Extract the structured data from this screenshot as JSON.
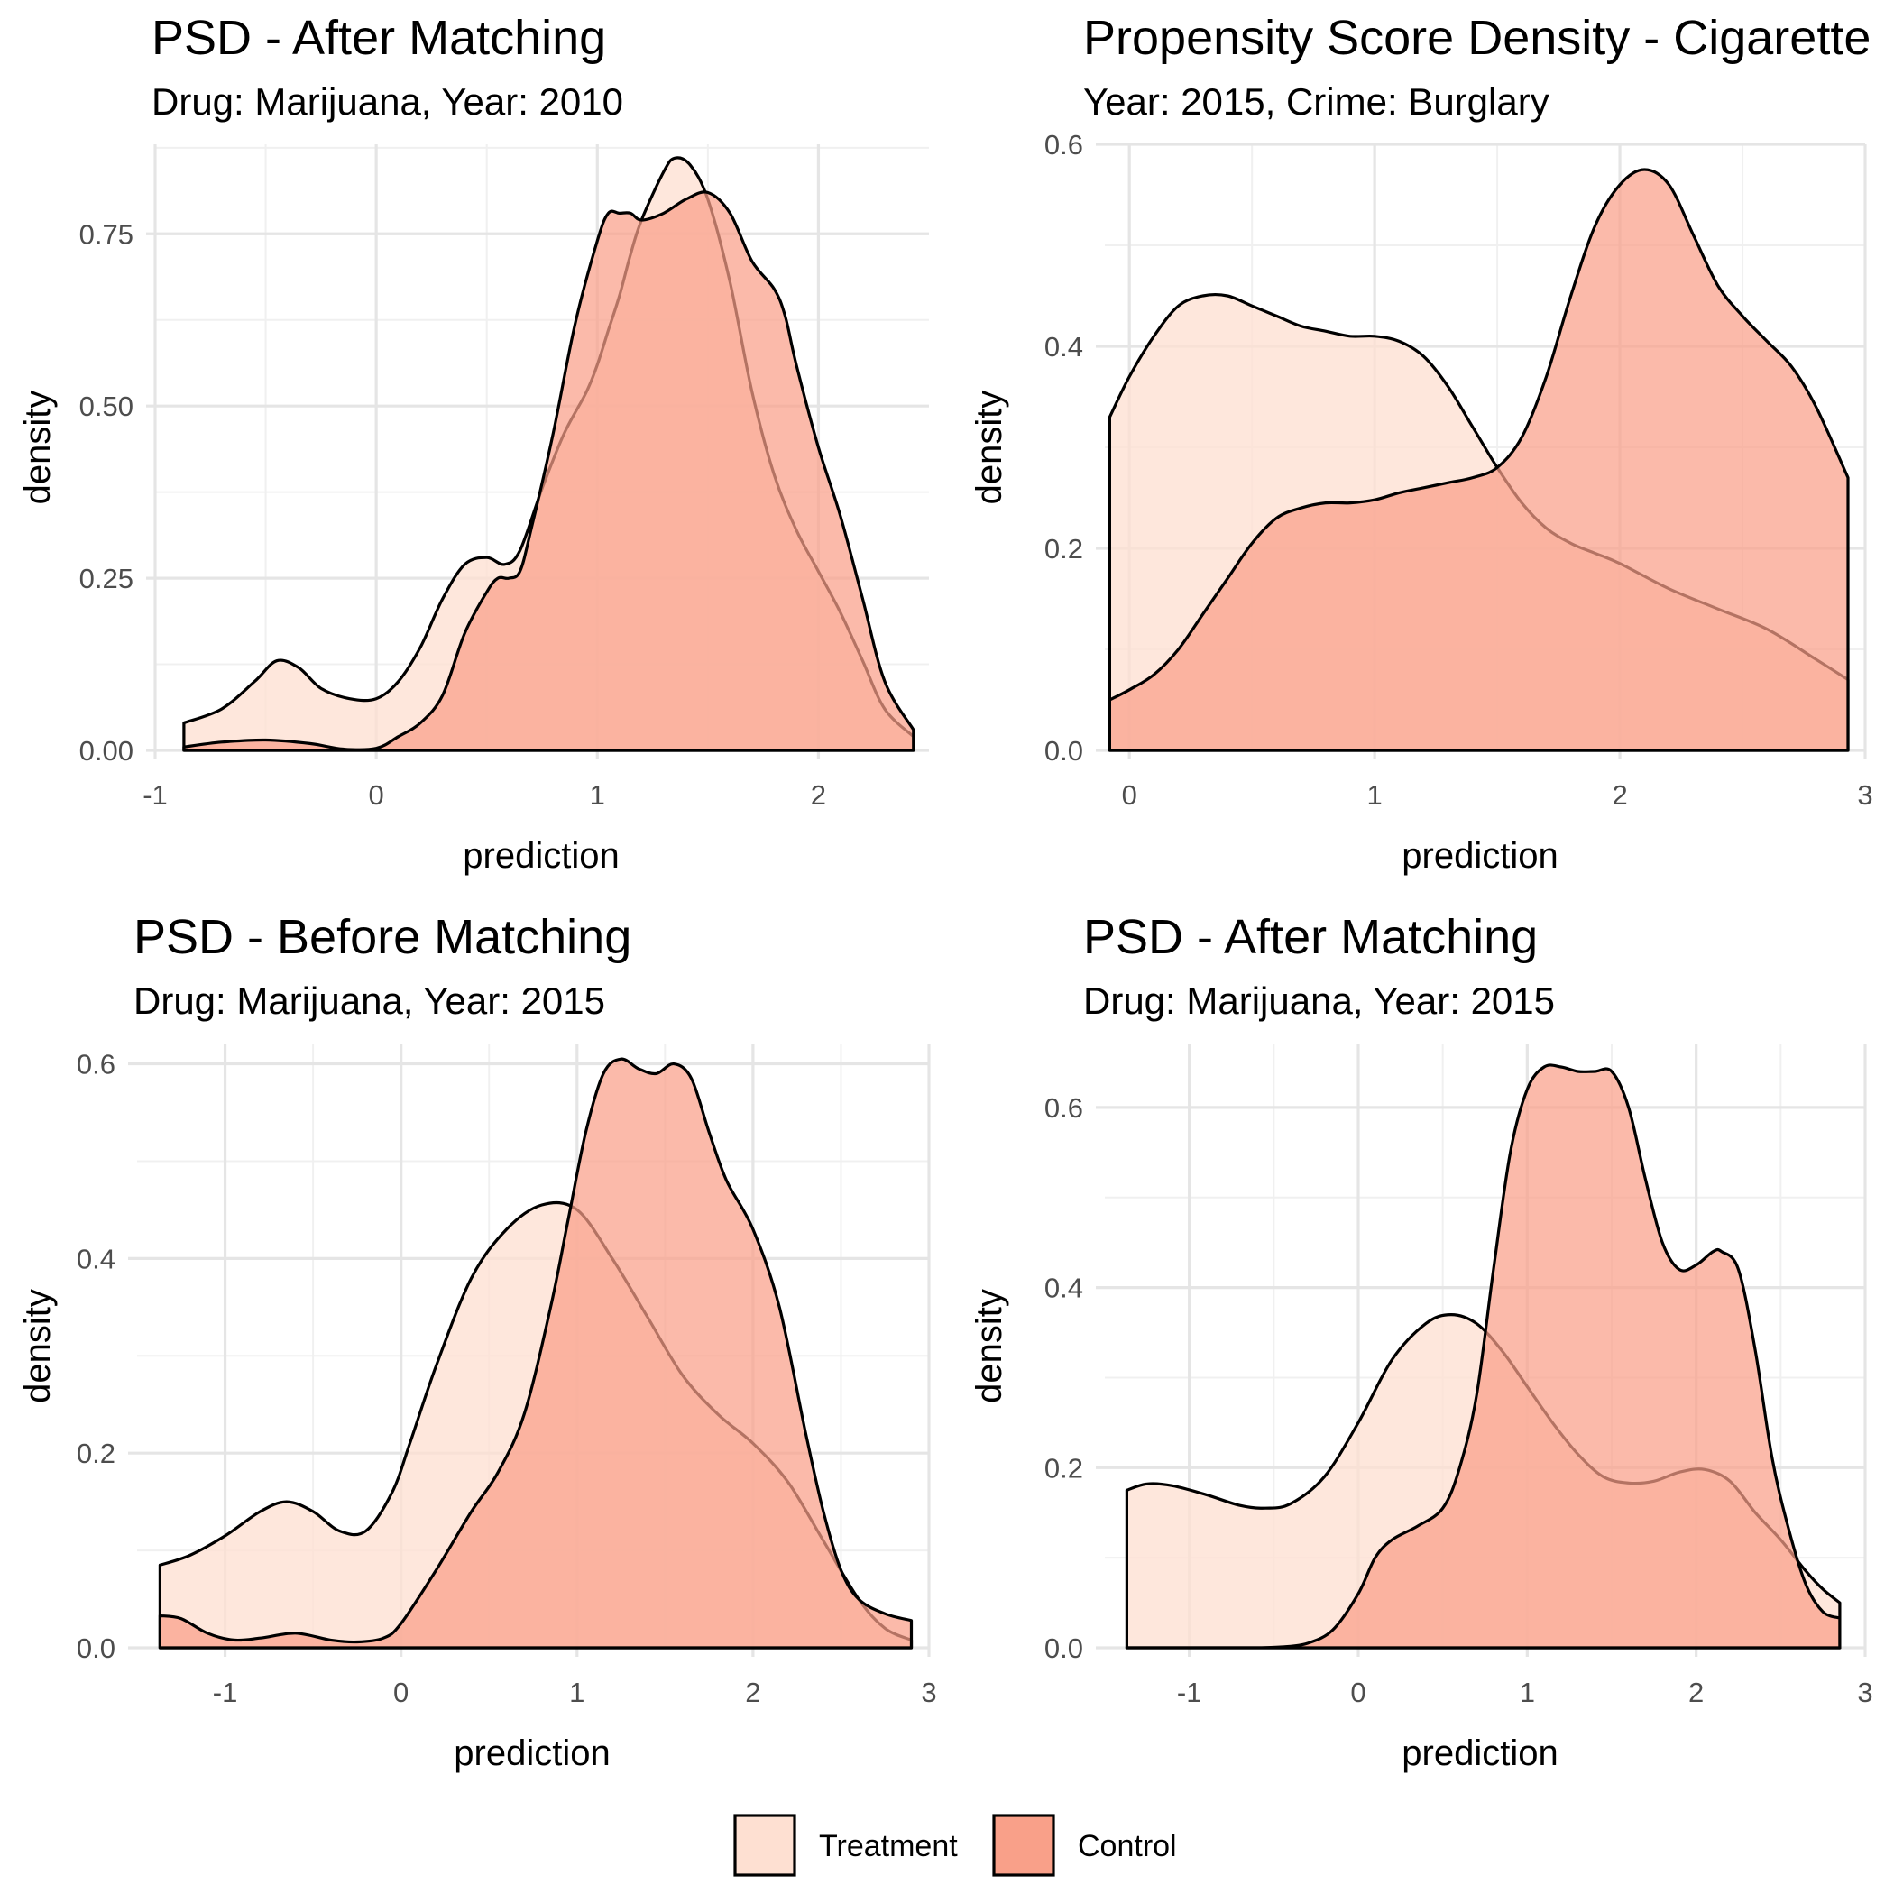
{
  "colors": {
    "treatment_fill": "#fee0d2",
    "control_fill": "#f9a089",
    "grid": "#e5e5e5",
    "outline": "#000000"
  },
  "legend": {
    "items": [
      {
        "label": "Treatment",
        "color": "#fee0d2"
      },
      {
        "label": "Control",
        "color": "#f9a089"
      }
    ],
    "position": "bottom"
  },
  "chart_data": [
    {
      "type": "area",
      "title": "PSD - After Matching",
      "subtitle": "Drug: Marijuana, Year: 2010",
      "xlabel": "prediction",
      "ylabel": "density",
      "xlim": [
        -1,
        2.5
      ],
      "ylim": [
        0,
        0.88
      ],
      "xticks": [
        -1,
        0,
        1,
        2
      ],
      "xtick_labels": [
        "-1",
        "0",
        "1",
        "2"
      ],
      "yticks": [
        0,
        0.25,
        0.5,
        0.75
      ],
      "ytick_labels": [
        "0.00",
        "0.25",
        "0.50",
        "0.75"
      ],
      "grid": true,
      "series": [
        {
          "name": "Treatment",
          "x": [
            -0.87,
            -0.7,
            -0.55,
            -0.45,
            -0.35,
            -0.25,
            -0.12,
            0,
            0.1,
            0.2,
            0.3,
            0.4,
            0.5,
            0.58,
            0.65,
            0.75,
            0.85,
            0.95,
            1.0,
            1.05,
            1.1,
            1.15,
            1.2,
            1.3,
            1.35,
            1.42,
            1.5,
            1.6,
            1.7,
            1.8,
            1.9,
            2.0,
            2.1,
            2.2,
            2.3,
            2.43
          ],
          "y": [
            0.04,
            0.06,
            0.1,
            0.13,
            0.12,
            0.09,
            0.075,
            0.075,
            0.1,
            0.15,
            0.22,
            0.27,
            0.28,
            0.27,
            0.29,
            0.38,
            0.46,
            0.52,
            0.56,
            0.61,
            0.66,
            0.72,
            0.77,
            0.84,
            0.86,
            0.85,
            0.8,
            0.68,
            0.52,
            0.4,
            0.32,
            0.26,
            0.2,
            0.13,
            0.06,
            0.02
          ]
        },
        {
          "name": "Control",
          "x": [
            -0.87,
            -0.7,
            -0.5,
            -0.3,
            -0.15,
            0,
            0.1,
            0.2,
            0.3,
            0.4,
            0.5,
            0.55,
            0.6,
            0.65,
            0.7,
            0.8,
            0.9,
            1.0,
            1.05,
            1.1,
            1.15,
            1.2,
            1.3,
            1.4,
            1.5,
            1.6,
            1.7,
            1.8,
            1.85,
            1.9,
            2.0,
            2.1,
            2.2,
            2.3,
            2.43
          ],
          "y": [
            0.005,
            0.012,
            0.015,
            0.01,
            0.002,
            0.003,
            0.02,
            0.04,
            0.08,
            0.17,
            0.23,
            0.25,
            0.25,
            0.26,
            0.32,
            0.46,
            0.62,
            0.74,
            0.78,
            0.78,
            0.78,
            0.77,
            0.78,
            0.8,
            0.81,
            0.78,
            0.71,
            0.67,
            0.63,
            0.56,
            0.44,
            0.34,
            0.22,
            0.1,
            0.03
          ]
        }
      ]
    },
    {
      "type": "area",
      "title": "Propensity Score Density - Cigarette",
      "subtitle": "Year: 2015, Crime: Burglary",
      "xlabel": "prediction",
      "ylabel": "density",
      "xlim": [
        -0.1,
        3
      ],
      "ylim": [
        0,
        0.6
      ],
      "xticks": [
        0,
        1,
        2,
        3
      ],
      "xtick_labels": [
        "0",
        "1",
        "2",
        "3"
      ],
      "yticks": [
        0,
        0.2,
        0.4,
        0.6
      ],
      "ytick_labels": [
        "0.0",
        "0.2",
        "0.4",
        "0.6"
      ],
      "grid": true,
      "series": [
        {
          "name": "Treatment",
          "x": [
            -0.08,
            0,
            0.1,
            0.2,
            0.3,
            0.4,
            0.5,
            0.6,
            0.7,
            0.8,
            0.9,
            1.0,
            1.1,
            1.2,
            1.3,
            1.4,
            1.5,
            1.6,
            1.7,
            1.8,
            1.9,
            2.0,
            2.2,
            2.4,
            2.6,
            2.8,
            2.93
          ],
          "y": [
            0.33,
            0.37,
            0.41,
            0.44,
            0.45,
            0.45,
            0.44,
            0.43,
            0.42,
            0.415,
            0.41,
            0.41,
            0.405,
            0.39,
            0.36,
            0.32,
            0.28,
            0.245,
            0.22,
            0.205,
            0.195,
            0.185,
            0.16,
            0.14,
            0.12,
            0.09,
            0.07
          ]
        },
        {
          "name": "Control",
          "x": [
            -0.08,
            0,
            0.1,
            0.2,
            0.3,
            0.4,
            0.5,
            0.6,
            0.7,
            0.8,
            0.9,
            1.0,
            1.1,
            1.2,
            1.3,
            1.4,
            1.5,
            1.6,
            1.7,
            1.8,
            1.9,
            2.0,
            2.1,
            2.2,
            2.3,
            2.4,
            2.5,
            2.6,
            2.7,
            2.8,
            2.93
          ],
          "y": [
            0.05,
            0.06,
            0.075,
            0.1,
            0.135,
            0.17,
            0.205,
            0.23,
            0.24,
            0.245,
            0.245,
            0.248,
            0.255,
            0.26,
            0.265,
            0.27,
            0.28,
            0.31,
            0.37,
            0.45,
            0.52,
            0.56,
            0.575,
            0.56,
            0.51,
            0.46,
            0.43,
            0.405,
            0.38,
            0.34,
            0.27
          ]
        }
      ]
    },
    {
      "type": "area",
      "title": "PSD - Before Matching",
      "subtitle": "Drug: Marijuana, Year: 2015",
      "xlabel": "prediction",
      "ylabel": "density",
      "xlim": [
        -1.5,
        3
      ],
      "ylim": [
        0,
        0.62
      ],
      "xticks": [
        -1,
        0,
        1,
        2,
        3
      ],
      "xtick_labels": [
        "-1",
        "0",
        "1",
        "2",
        "3"
      ],
      "yticks": [
        0,
        0.2,
        0.4,
        0.6
      ],
      "ytick_labels": [
        "0.0",
        "0.2",
        "0.4",
        "0.6"
      ],
      "grid": true,
      "series": [
        {
          "name": "Treatment",
          "x": [
            -1.37,
            -1.2,
            -1.0,
            -0.8,
            -0.65,
            -0.5,
            -0.35,
            -0.2,
            -0.05,
            0.05,
            0.2,
            0.4,
            0.6,
            0.8,
            1.0,
            1.2,
            1.4,
            1.6,
            1.8,
            2.0,
            2.2,
            2.4,
            2.6,
            2.75,
            2.9
          ],
          "y": [
            0.085,
            0.095,
            0.115,
            0.14,
            0.15,
            0.14,
            0.12,
            0.12,
            0.16,
            0.21,
            0.29,
            0.38,
            0.43,
            0.455,
            0.45,
            0.4,
            0.34,
            0.28,
            0.24,
            0.21,
            0.17,
            0.11,
            0.05,
            0.02,
            0.008
          ]
        },
        {
          "name": "Control",
          "x": [
            -1.37,
            -1.25,
            -1.1,
            -0.95,
            -0.8,
            -0.6,
            -0.4,
            -0.25,
            -0.1,
            0,
            0.2,
            0.4,
            0.55,
            0.7,
            0.85,
            0.95,
            1.05,
            1.15,
            1.25,
            1.35,
            1.45,
            1.55,
            1.65,
            1.75,
            1.85,
            2.0,
            2.15,
            2.3,
            2.4,
            2.5,
            2.6,
            2.75,
            2.9
          ],
          "y": [
            0.033,
            0.03,
            0.015,
            0.008,
            0.01,
            0.015,
            0.008,
            0.006,
            0.01,
            0.025,
            0.08,
            0.14,
            0.18,
            0.24,
            0.35,
            0.44,
            0.53,
            0.59,
            0.605,
            0.595,
            0.59,
            0.6,
            0.585,
            0.53,
            0.48,
            0.43,
            0.35,
            0.22,
            0.14,
            0.08,
            0.05,
            0.035,
            0.028
          ]
        }
      ]
    },
    {
      "type": "area",
      "title": "PSD - After Matching",
      "subtitle": "Drug: Marijuana, Year: 2015",
      "xlabel": "prediction",
      "ylabel": "density",
      "xlim": [
        -1.5,
        3
      ],
      "ylim": [
        0,
        0.67
      ],
      "xticks": [
        -1,
        0,
        1,
        2,
        3
      ],
      "xtick_labels": [
        "-1",
        "0",
        "1",
        "2",
        "3"
      ],
      "yticks": [
        0,
        0.2,
        0.4,
        0.6
      ],
      "ytick_labels": [
        "0.0",
        "0.2",
        "0.4",
        "0.6"
      ],
      "grid": true,
      "series": [
        {
          "name": "Treatment",
          "x": [
            -1.37,
            -1.25,
            -1.1,
            -0.9,
            -0.7,
            -0.55,
            -0.4,
            -0.2,
            0,
            0.2,
            0.4,
            0.55,
            0.7,
            0.85,
            1.0,
            1.15,
            1.3,
            1.45,
            1.6,
            1.75,
            1.9,
            2.05,
            2.2,
            2.35,
            2.5,
            2.65,
            2.75,
            2.85
          ],
          "y": [
            0.175,
            0.182,
            0.18,
            0.17,
            0.158,
            0.155,
            0.16,
            0.19,
            0.25,
            0.32,
            0.36,
            0.37,
            0.36,
            0.33,
            0.29,
            0.25,
            0.215,
            0.19,
            0.183,
            0.185,
            0.195,
            0.198,
            0.185,
            0.15,
            0.12,
            0.085,
            0.065,
            0.05
          ]
        },
        {
          "name": "Control",
          "x": [
            -1.37,
            -1.1,
            -0.8,
            -0.6,
            -0.45,
            -0.3,
            -0.15,
            0,
            0.1,
            0.2,
            0.35,
            0.5,
            0.6,
            0.7,
            0.8,
            0.9,
            1.0,
            1.1,
            1.2,
            1.3,
            1.4,
            1.5,
            1.6,
            1.7,
            1.8,
            1.9,
            2.0,
            2.1,
            2.15,
            2.25,
            2.35,
            2.45,
            2.55,
            2.65,
            2.75,
            2.85
          ],
          "y": [
            0,
            0,
            0,
            0,
            0.001,
            0.005,
            0.02,
            0.06,
            0.1,
            0.12,
            0.135,
            0.155,
            0.2,
            0.28,
            0.42,
            0.55,
            0.62,
            0.645,
            0.645,
            0.64,
            0.64,
            0.64,
            0.6,
            0.52,
            0.45,
            0.42,
            0.425,
            0.44,
            0.44,
            0.42,
            0.33,
            0.21,
            0.13,
            0.07,
            0.04,
            0.033
          ]
        }
      ]
    }
  ]
}
